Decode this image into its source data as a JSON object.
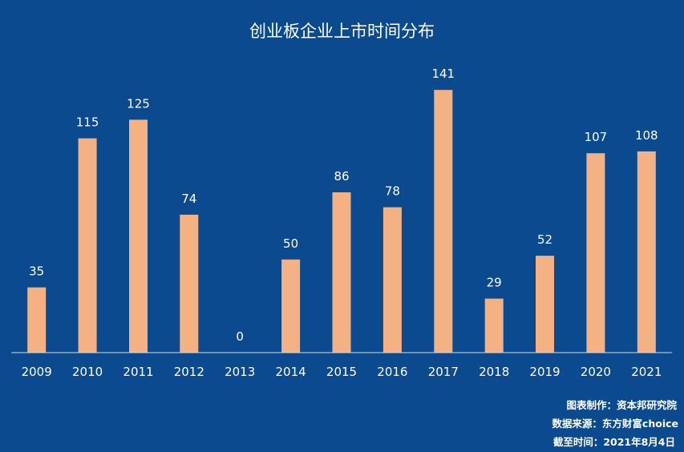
{
  "chart_data": {
    "type": "bar",
    "title": "创业板企业上市时间分布",
    "xlabel": "",
    "ylabel": "",
    "categories": [
      "2009",
      "2010",
      "2011",
      "2012",
      "2013",
      "2014",
      "2015",
      "2016",
      "2017",
      "2018",
      "2019",
      "2020",
      "2021"
    ],
    "values": [
      35,
      115,
      125,
      74,
      0,
      50,
      86,
      78,
      141,
      29,
      52,
      107,
      108
    ],
    "ylim": [
      0,
      160
    ],
    "grid": false,
    "legend": "none",
    "data_labels": true
  },
  "footer": {
    "credit": "图表制作：资本邦研究院",
    "source": "数据来源：东方财富choice",
    "as_of": "截至时间：2021年8月4日"
  },
  "colors": {
    "background": "#0b4a8e",
    "bar": "#f4b183",
    "text": "#ffffff",
    "axis": "#d9d9d9"
  }
}
